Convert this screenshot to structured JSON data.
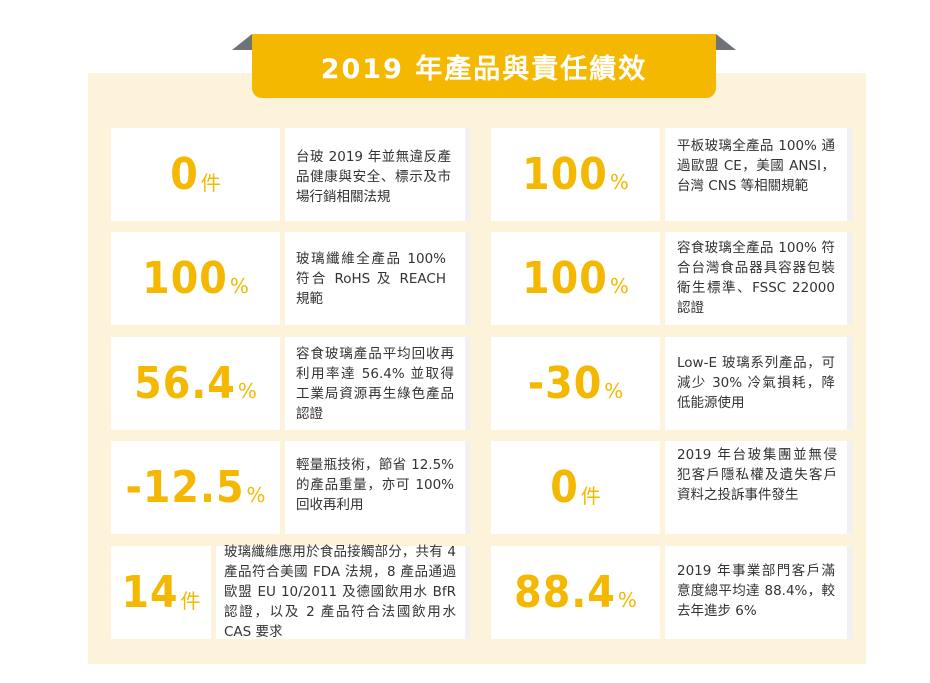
{
  "title": "2019 年產品與責任績效",
  "left": [
    {
      "value": "0",
      "unit": "件",
      "desc": "台玻 2019 年並無違反產品健康與安全、標示及市場行銷相關法規"
    },
    {
      "value": "100",
      "unit": "%",
      "desc": "玻璃纖維全產品 100% 符合 RoHS 及 REACH 規範"
    },
    {
      "value": "56.4",
      "unit": "%",
      "desc": "容食玻璃產品平均回收再利用率達 56.4% 並取得工業局資源再生綠色產品認證"
    },
    {
      "value": "-12.5",
      "unit": "%",
      "desc": "輕量瓶技術，節省 12.5% 的產品重量，亦可 100% 回收再利用"
    },
    {
      "value": "14",
      "unit": "件",
      "desc": "玻璃纖維應用於食品接觸部分，共有 4 產品符合美國 FDA 法規，8 產品通過歐盟 EU 10/2011 及德國飲用水 BfR 認證，以及 2 產品符合法國飲用水 CAS 要求"
    }
  ],
  "right": [
    {
      "value": "100",
      "unit": "%",
      "desc": "平板玻璃全產品 100% 通過歐盟 CE，美國 ANSI，台灣 CNS 等相關規範"
    },
    {
      "value": "100",
      "unit": "%",
      "desc": "容食玻璃全產品 100% 符合台灣食品器具容器包裝衛生標準、FSSC 22000 認證"
    },
    {
      "value": "-30",
      "unit": "%",
      "desc": "Low-E 玻璃系列產品，可減少 30% 冷氣損耗，降低能源使用"
    },
    {
      "value": "0",
      "unit": "件",
      "desc": "2019 年台玻集團並無侵犯客戶隱私權及遺失客戶資料之投訴事件發生"
    },
    {
      "value": "88.4",
      "unit": "%",
      "desc": "2019 年事業部門客戶滿意度總平均達 88.4%，較去年進步 6%"
    }
  ]
}
